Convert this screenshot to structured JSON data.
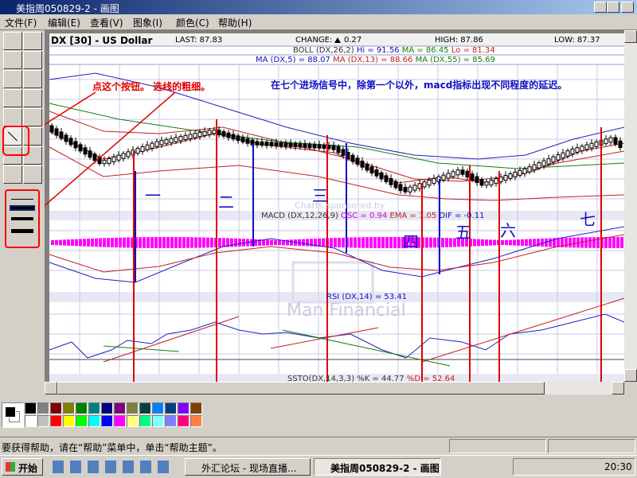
{
  "window": {
    "title": "美指周050829-2 - 画图"
  },
  "menu": [
    "文件(F)",
    "编辑(E)",
    "查看(V)",
    "图象(I)",
    "颜色(C)",
    "帮助(H)"
  ],
  "chart": {
    "symbol": "DX [30] - US Dollar",
    "last": "LAST: 87.83",
    "change_label": "CHANGE:",
    "change": "0.27",
    "high": "HIGH: 87.86",
    "low": "LOW: 87.37",
    "boll": {
      "label": "BOLL (DX,26,2)",
      "hi": "Hi = 91.56",
      "ma": "MA = 86.45",
      "lo": "Lo = 81.34"
    },
    "ma": {
      "ma5": "MA (DX,5) = 88.07",
      "ma13": "MA (DX,13) = 88.66",
      "ma55": "MA (DX,55) = 85.69"
    },
    "macd": {
      "label": "MACD (DX,12,26,9)",
      "osc": "OSC = 0.94",
      "ema": "EMA = 1.05",
      "dif": "DIF = -0.11"
    },
    "rsi": "RSI (DX,14) = 53.41",
    "ssto": {
      "label": "SSTO(DX,14,3,3) %K = 44.77",
      "d": "%D = 52.64"
    },
    "sponsor": "Charts sponsored by",
    "sponsor_name": "Man Financial"
  },
  "annotations": {
    "tool_hint": "点这个按钮。 选线的粗细。",
    "note": "在七个进场信号中，除第一个以外，macd指标出现不同程度的延迟。",
    "signals": [
      "一",
      "二",
      "三",
      "四",
      "五",
      "六",
      "七"
    ]
  },
  "status_bar": "要获得帮助，请在“帮助”菜单中，单击“帮助主题”。",
  "taskbar": {
    "start": "开始",
    "tasks": [
      "外汇论坛 - 现场直播...",
      "美指周050829-2 - 画图"
    ],
    "clock": "20:30"
  }
}
